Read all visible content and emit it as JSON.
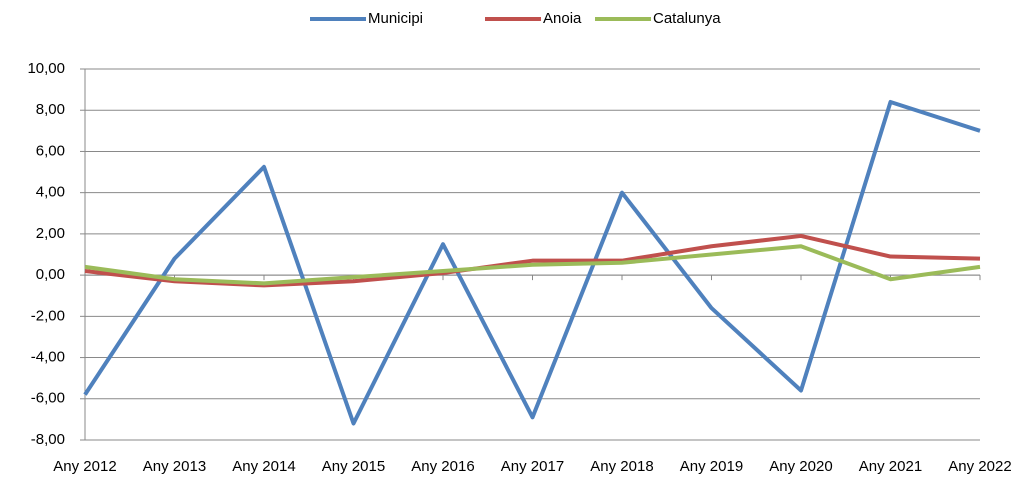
{
  "chart_data": {
    "type": "line",
    "categories": [
      "Any 2012",
      "Any 2013",
      "Any 2014",
      "Any 2015",
      "Any 2016",
      "Any 2017",
      "Any 2018",
      "Any 2019",
      "Any 2020",
      "Any 2021",
      "Any 2022"
    ],
    "series": [
      {
        "name": "Municipi",
        "color": "#4f81bd",
        "values": [
          -5.8,
          0.8,
          5.25,
          -7.2,
          1.5,
          -6.9,
          4.0,
          -1.6,
          -5.6,
          8.4,
          7.0
        ]
      },
      {
        "name": "Anoia",
        "color": "#c0504d",
        "values": [
          0.2,
          -0.3,
          -0.5,
          -0.3,
          0.1,
          0.7,
          0.7,
          1.4,
          1.9,
          0.9,
          0.8
        ]
      },
      {
        "name": "Catalunya",
        "color": "#9bbb59",
        "values": [
          0.4,
          -0.2,
          -0.4,
          -0.1,
          0.2,
          0.5,
          0.6,
          1.0,
          1.4,
          -0.2,
          0.4
        ]
      }
    ],
    "ylim": [
      -8,
      10
    ],
    "yticks": [
      {
        "value": -8,
        "label": "-8,00"
      },
      {
        "value": -6,
        "label": "-6,00"
      },
      {
        "value": -4,
        "label": "-4,00"
      },
      {
        "value": -2,
        "label": "-2,00"
      },
      {
        "value": 0,
        "label": "0,00"
      },
      {
        "value": 2,
        "label": "2,00"
      },
      {
        "value": 4,
        "label": "4,00"
      },
      {
        "value": 6,
        "label": "6,00"
      },
      {
        "value": 8,
        "label": "8,00"
      },
      {
        "value": 10,
        "label": "10,00"
      }
    ],
    "grid": true,
    "legend": "top"
  }
}
